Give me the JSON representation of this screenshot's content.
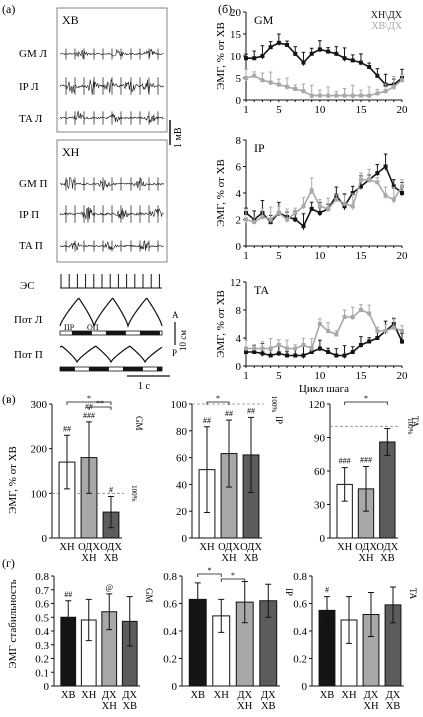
{
  "colors": {
    "black": "#141414",
    "gray": "#a8a8a8",
    "white": "#ffffff",
    "dark_gray": "#5c5c5c",
    "ink": "#111111"
  },
  "panel_a": {
    "label": "(а)",
    "xb_box_label": "ХВ",
    "xn_box_label": "ХН",
    "xb_traces": [
      "GM Л",
      "IP Л",
      "TA Л"
    ],
    "xn_traces": [
      "GM П",
      "IP П",
      "TA П"
    ],
    "scale_amp": "1 мВ",
    "es_label": "ЭС",
    "pot_l_label": "Пот Л",
    "pot_p_label": "Пот П",
    "pr_label": "ПР",
    "op_label": "ОП",
    "scale_a": "A",
    "scale_len": "10 см",
    "scale_p": "P",
    "scale_time": "1 с"
  },
  "panel_v": {
    "label": "(в)",
    "ylabel": "ЭМГ, % от ХВ"
  },
  "panel_g": {
    "label": "(г)",
    "ylabel": "ЭМГ стабильность"
  },
  "chart_data": [
    {
      "panel": "(б)",
      "type": "line",
      "title": "GM",
      "ylabel": "ЭМГ, % от ХВ",
      "xlim": [
        1,
        20
      ],
      "ylim": [
        0,
        20
      ],
      "yticks": [
        0,
        5,
        10,
        15,
        20
      ],
      "xticks": [
        1,
        5,
        10,
        15,
        20
      ],
      "x": [
        1,
        2,
        3,
        4,
        5,
        6,
        7,
        8,
        9,
        10,
        11,
        12,
        13,
        14,
        15,
        16,
        17,
        18,
        19,
        20
      ],
      "series": [
        {
          "name": "ХН\\ДХ",
          "color": "#141414",
          "values": [
            9.5,
            9.5,
            10,
            12,
            13,
            12.5,
            10.5,
            8.5,
            10.5,
            11.5,
            11,
            10.5,
            9.5,
            9,
            8.5,
            7.5,
            5.5,
            3.5,
            3.5,
            5
          ]
        },
        {
          "name": "ХВ\\ДХ",
          "color": "#a8a8a8",
          "values": [
            5,
            5.5,
            4.5,
            4,
            3.5,
            3,
            2.5,
            2,
            1,
            1,
            1,
            1,
            1,
            1,
            1,
            1,
            1.5,
            2,
            3,
            4.5
          ]
        }
      ],
      "legend": "top-right"
    },
    {
      "panel": "(б)",
      "type": "line",
      "title": "IP",
      "ylabel": "ЭМГ, % от ХВ",
      "xlim": [
        1,
        20
      ],
      "ylim": [
        0,
        8
      ],
      "yticks": [
        0,
        2,
        4,
        6,
        8
      ],
      "xticks": [
        1,
        5,
        10,
        15,
        20
      ],
      "x": [
        1,
        2,
        3,
        4,
        5,
        6,
        7,
        8,
        9,
        10,
        11,
        12,
        13,
        14,
        15,
        16,
        17,
        18,
        19,
        20
      ],
      "series": [
        {
          "name": "ХН\\ДХ",
          "color": "#141414",
          "values": [
            2.5,
            2,
            2.5,
            1.8,
            2.5,
            2.2,
            2,
            1.5,
            2.8,
            2.5,
            2.8,
            3.8,
            3,
            4,
            4.5,
            5,
            5.5,
            6,
            4.5,
            4
          ]
        },
        {
          "name": "ХВ\\ДХ",
          "color": "#a8a8a8",
          "values": [
            2,
            1.8,
            2.2,
            2,
            2.5,
            2,
            2.5,
            3,
            4.2,
            3,
            2.8,
            3.5,
            3.2,
            3,
            5,
            5,
            4.8,
            3.8,
            3.5,
            4.5
          ]
        }
      ]
    },
    {
      "panel": "(б)",
      "type": "line",
      "title": "TA",
      "ylabel": "ЭМГ, % от ХВ",
      "xlabel": "Цикл шага",
      "xlim": [
        1,
        20
      ],
      "ylim": [
        0,
        12
      ],
      "yticks": [
        0,
        4,
        8,
        12
      ],
      "xticks": [
        1,
        5,
        10,
        15,
        20
      ],
      "x": [
        1,
        2,
        3,
        4,
        5,
        6,
        7,
        8,
        9,
        10,
        11,
        12,
        13,
        14,
        15,
        16,
        17,
        18,
        19,
        20
      ],
      "series": [
        {
          "name": "ХН\\ДХ",
          "color": "#141414",
          "values": [
            2,
            2,
            1.8,
            1.5,
            1.8,
            1.5,
            1.5,
            1.5,
            2,
            2.5,
            2,
            1.5,
            1.5,
            2,
            3,
            3.5,
            4,
            5,
            6,
            3.5
          ]
        },
        {
          "name": "ХВ\\ДХ",
          "color": "#a8a8a8",
          "values": [
            2.5,
            2.5,
            2.5,
            2.5,
            3,
            2.5,
            2.5,
            3,
            2.5,
            6,
            5,
            4.5,
            7,
            7,
            8,
            7.5,
            5,
            5,
            5.5,
            5
          ]
        }
      ]
    },
    {
      "panel": "(в)",
      "type": "bar",
      "title": "GM",
      "ylim": [
        0,
        300
      ],
      "yticks": [
        0,
        100,
        200,
        300
      ],
      "categories": [
        "ХН",
        "ОДХ ХН",
        "ОДХ ХВ"
      ],
      "values": [
        170,
        180,
        58
      ],
      "errors": [
        60,
        80,
        35
      ],
      "bar_colors": [
        "#ffffff",
        "#a8a8a8",
        "#5c5c5c"
      ],
      "ref_line": 100,
      "ref_label": "100%",
      "annotations": [
        {
          "bar": 0,
          "text": "##"
        },
        {
          "bar": 1,
          "text": "###"
        },
        {
          "bar": 1,
          "text": "##"
        },
        {
          "bar": 2,
          "text": "#"
        }
      ],
      "sig_brackets": [
        {
          "from": 0,
          "to": 2,
          "text": "*"
        },
        {
          "from": 1,
          "to": 2,
          "text": "**"
        }
      ]
    },
    {
      "panel": "(в)",
      "type": "bar",
      "title": "IP",
      "ylim": [
        0,
        100
      ],
      "yticks": [
        0,
        20,
        40,
        60,
        80,
        100
      ],
      "categories": [
        "ХН",
        "ОДХ ХН",
        "ОДХ ХВ"
      ],
      "values": [
        51,
        63,
        62
      ],
      "errors": [
        32,
        25,
        28
      ],
      "bar_colors": [
        "#ffffff",
        "#a8a8a8",
        "#5c5c5c"
      ],
      "ref_line": 100,
      "ref_label": "100%",
      "annotations": [
        {
          "bar": 0,
          "text": "##"
        },
        {
          "bar": 1,
          "text": "##"
        },
        {
          "bar": 2,
          "text": "##"
        }
      ],
      "sig_brackets": [
        {
          "from": 0,
          "to": 1,
          "text": "*"
        }
      ]
    },
    {
      "panel": "(в)",
      "type": "bar",
      "title": "TA",
      "ylim": [
        0,
        120
      ],
      "yticks": [
        0,
        30,
        60,
        90,
        120
      ],
      "categories": [
        "ХН",
        "ОДХ ХН",
        "ОДХ ХВ"
      ],
      "values": [
        48,
        44,
        86
      ],
      "errors": [
        15,
        20,
        12
      ],
      "bar_colors": [
        "#ffffff",
        "#a8a8a8",
        "#5c5c5c"
      ],
      "ref_line": 100,
      "ref_label": "100%",
      "annotations": [
        {
          "bar": 0,
          "text": "###"
        },
        {
          "bar": 1,
          "text": "###"
        }
      ],
      "sig_brackets": [
        {
          "from": 0,
          "to": 2,
          "text": "*"
        }
      ]
    },
    {
      "panel": "(г)",
      "type": "bar",
      "title": "GM",
      "ylim": [
        0,
        0.8
      ],
      "yticks": [
        0,
        0.1,
        0.2,
        0.3,
        0.4,
        0.5,
        0.6,
        0.7,
        0.8
      ],
      "categories": [
        "ХВ",
        "ХН",
        "ДХ ХН",
        "ДХ ХВ"
      ],
      "values": [
        0.5,
        0.48,
        0.54,
        0.47
      ],
      "errors": [
        0.12,
        0.15,
        0.13,
        0.18
      ],
      "bar_colors": [
        "#141414",
        "#ffffff",
        "#a8a8a8",
        "#5c5c5c"
      ],
      "annotations": [
        {
          "bar": 0,
          "text": "##"
        },
        {
          "bar": 2,
          "text": "@"
        }
      ]
    },
    {
      "panel": "(г)",
      "type": "bar",
      "title": "IP",
      "ylim": [
        0,
        0.8
      ],
      "yticks": [
        0,
        0.2,
        0.4,
        0.6,
        0.8
      ],
      "categories": [
        "ХВ",
        "ХН",
        "ДХ ХН",
        "ДХ ХВ"
      ],
      "values": [
        0.63,
        0.51,
        0.61,
        0.62
      ],
      "errors": [
        0.12,
        0.12,
        0.15,
        0.12
      ],
      "bar_colors": [
        "#141414",
        "#ffffff",
        "#a8a8a8",
        "#5c5c5c"
      ],
      "annotations": [],
      "sig_brackets": [
        {
          "from": 0,
          "to": 1,
          "text": "*"
        },
        {
          "from": 1,
          "to": 2,
          "text": "*"
        }
      ]
    },
    {
      "panel": "(г)",
      "type": "bar",
      "title": "TA",
      "ylim": [
        0,
        0.8
      ],
      "yticks": [
        0,
        0.2,
        0.4,
        0.6,
        0.8
      ],
      "categories": [
        "ХВ",
        "ХН",
        "ДХ ХН",
        "ДХ ХВ"
      ],
      "values": [
        0.55,
        0.48,
        0.52,
        0.59
      ],
      "errors": [
        0.1,
        0.17,
        0.16,
        0.13
      ],
      "bar_colors": [
        "#141414",
        "#ffffff",
        "#a8a8a8",
        "#5c5c5c"
      ],
      "annotations": [
        {
          "bar": 0,
          "text": "#"
        }
      ]
    }
  ]
}
